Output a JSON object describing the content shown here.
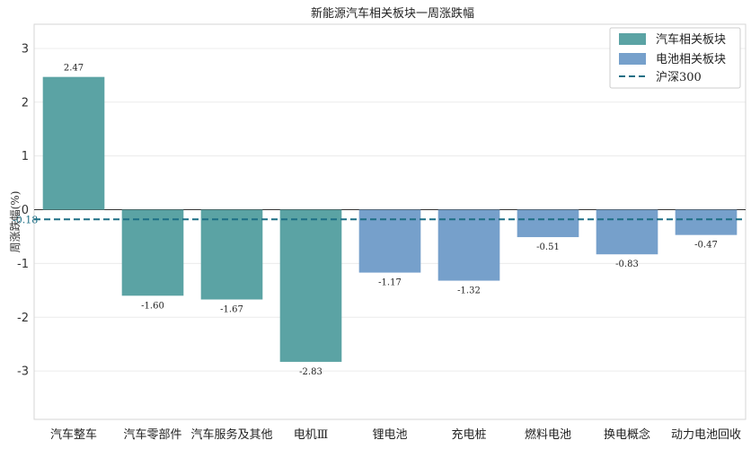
{
  "chart_data": {
    "type": "bar",
    "title": "新能源汽车相关板块一周涨跌幅",
    "ylabel": "周涨跌幅(%)",
    "xlabel": "",
    "ylim": [
      -3.9,
      3.45
    ],
    "yticks": [
      -3,
      -2,
      -1,
      0,
      1,
      2,
      3
    ],
    "ytick_labels": [
      "-3",
      "-2",
      "-1",
      "0",
      "1",
      "2",
      "3"
    ],
    "grid": true,
    "categories": [
      "汽车整车",
      "汽车零部件",
      "汽车服务及其他",
      "电机Ⅲ",
      "锂电池",
      "充电桩",
      "燃料电池",
      "换电概念",
      "动力电池回收"
    ],
    "values": [
      2.47,
      -1.6,
      -1.67,
      -2.83,
      -1.17,
      -1.32,
      -0.51,
      -0.83,
      -0.47
    ],
    "value_labels": [
      "2.47",
      "-1.60",
      "-1.67",
      "-2.83",
      "-1.17",
      "-1.32",
      "-0.51",
      "-0.83",
      "-0.47"
    ],
    "groups": [
      "汽车相关板块",
      "汽车相关板块",
      "汽车相关板块",
      "汽车相关板块",
      "电池相关板块",
      "电池相关板块",
      "电池相关板块",
      "电池相关板块",
      "电池相关板块"
    ],
    "series": [
      {
        "name": "汽车相关板块",
        "color": "#5ba3a4"
      },
      {
        "name": "电池相关板块",
        "color": "#76a0cb"
      }
    ],
    "reference_line": {
      "name": "沪深300",
      "value": -0.18,
      "label": "-0.18",
      "color": "#1d6f85",
      "style": "dashed"
    },
    "legend_position": "top-right"
  }
}
